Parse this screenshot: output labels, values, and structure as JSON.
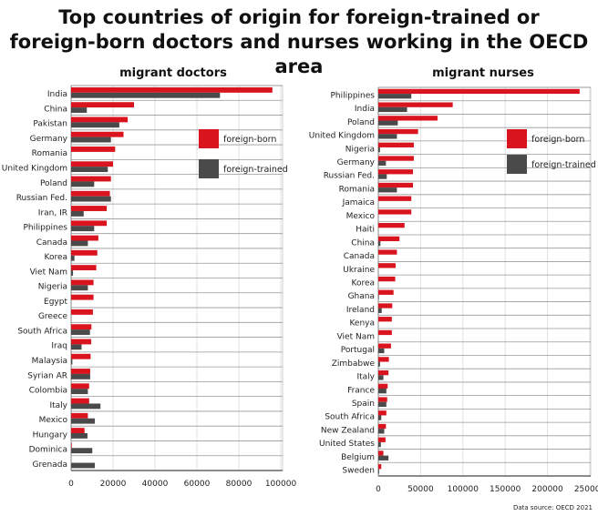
{
  "title_line1": "Top countries of origin for foreign-trained or",
  "title_line2": "foreign-born doctors and nurses working in the OECD area",
  "source": "Data source: OECD 2021",
  "colors": {
    "foreign_born": "#d9141e",
    "foreign_trained": "#4a4a4a"
  },
  "chart_data": [
    {
      "type": "bar",
      "orientation": "horizontal",
      "title": "migrant doctors",
      "xlim": [
        0,
        100000
      ],
      "ticks": [
        "0",
        "20000",
        "40000",
        "60000",
        "80000",
        "100000"
      ],
      "tick_values": [
        0,
        20000,
        40000,
        60000,
        80000,
        100000
      ],
      "legend": [
        "foreign-born",
        "foreign-trained"
      ],
      "legend_position": "top-right",
      "categories": [
        "India",
        "China",
        "Pakistan",
        "Germany",
        "Romania",
        "United Kingdom",
        "Poland",
        "Russian Fed.",
        "Iran, IR",
        "Philippines",
        "Canada",
        "Korea",
        "Viet Nam",
        "Nigeria",
        "Egypt",
        "Greece",
        "South Africa",
        "Iraq",
        "Malaysia",
        "Syrian AR",
        "Colombia",
        "Italy",
        "Mexico",
        "Hungary",
        "Dominica",
        "Grenada"
      ],
      "series": [
        {
          "name": "foreign-born",
          "values": [
            96000,
            30000,
            27000,
            25000,
            21000,
            20000,
            19000,
            18500,
            17000,
            17000,
            13000,
            12500,
            12000,
            10700,
            10700,
            10400,
            9700,
            9600,
            9300,
            9100,
            8600,
            8600,
            8000,
            6400,
            300,
            0
          ]
        },
        {
          "name": "foreign-trained",
          "values": [
            71000,
            7500,
            23000,
            19000,
            0,
            17500,
            11000,
            19000,
            6000,
            11000,
            8000,
            1600,
            900,
            8000,
            0,
            0,
            9000,
            5000,
            600,
            9100,
            8000,
            14000,
            11300,
            7800,
            10100,
            11300
          ]
        }
      ]
    },
    {
      "type": "bar",
      "orientation": "horizontal",
      "title": "migrant nurses",
      "xlim": [
        0,
        250000
      ],
      "ticks": [
        "0",
        "50000",
        "100000",
        "150000",
        "200000",
        "250000"
      ],
      "tick_values": [
        0,
        50000,
        100000,
        150000,
        200000,
        250000
      ],
      "legend": [
        "foreign-born",
        "foreign-trained"
      ],
      "legend_position": "top-right",
      "categories": [
        "Philippines",
        "India",
        "Poland",
        "United Kingdom",
        "Nigeria",
        "Germany",
        "Russian Fed.",
        "Romania",
        "Jamaica",
        "Mexico",
        "Haiti",
        "China",
        "Canada",
        "Ukraine",
        "Korea",
        "Ghana",
        "Ireland",
        "Kenya",
        "Viet Nam",
        "Portugal",
        "Zimbabwe",
        "Italy",
        "France",
        "Spain",
        "South Africa",
        "New Zealand",
        "United States",
        "Belgium",
        "Sweden"
      ],
      "series": [
        {
          "name": "foreign-born",
          "values": [
            238000,
            88000,
            70000,
            47000,
            42000,
            42000,
            41000,
            41000,
            39000,
            39000,
            31000,
            25000,
            22000,
            20500,
            20000,
            18000,
            16500,
            16000,
            16000,
            15000,
            12500,
            12000,
            11000,
            10500,
            9500,
            9000,
            8500,
            6000,
            3500
          ]
        },
        {
          "name": "foreign-trained",
          "values": [
            39000,
            34000,
            23000,
            22000,
            2000,
            9000,
            10000,
            22000,
            0,
            0,
            0,
            2500,
            0,
            0,
            0,
            700,
            4000,
            0,
            0,
            7000,
            2000,
            6000,
            9500,
            9500,
            3500,
            7000,
            3000,
            12000,
            1000
          ]
        }
      ]
    }
  ]
}
